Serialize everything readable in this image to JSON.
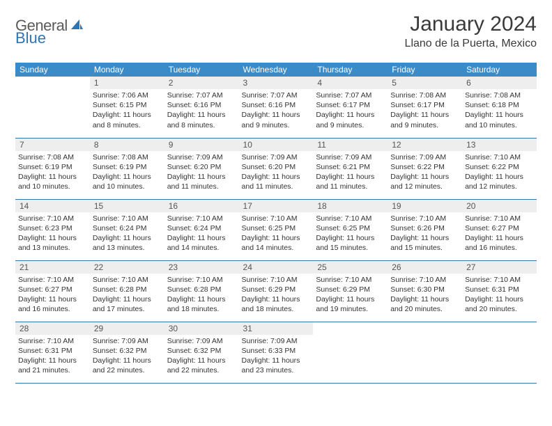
{
  "brand": {
    "part1": "General",
    "part2": "Blue"
  },
  "title": "January 2024",
  "location": "Llano de la Puerta, Mexico",
  "colors": {
    "header_bg": "#3b8bc9",
    "header_text": "#ffffff",
    "rule": "#2e75b6",
    "daynum_bg": "#eeeeee",
    "daynum_text": "#555555",
    "body_text": "#333333",
    "logo_gray": "#5a5a5a",
    "logo_blue": "#2e75b6"
  },
  "weekdays": [
    "Sunday",
    "Monday",
    "Tuesday",
    "Wednesday",
    "Thursday",
    "Friday",
    "Saturday"
  ],
  "weeks": [
    [
      {
        "n": "",
        "sunrise": "",
        "sunset": "",
        "daylight": ""
      },
      {
        "n": "1",
        "sunrise": "Sunrise: 7:06 AM",
        "sunset": "Sunset: 6:15 PM",
        "daylight": "Daylight: 11 hours and 8 minutes."
      },
      {
        "n": "2",
        "sunrise": "Sunrise: 7:07 AM",
        "sunset": "Sunset: 6:16 PM",
        "daylight": "Daylight: 11 hours and 8 minutes."
      },
      {
        "n": "3",
        "sunrise": "Sunrise: 7:07 AM",
        "sunset": "Sunset: 6:16 PM",
        "daylight": "Daylight: 11 hours and 9 minutes."
      },
      {
        "n": "4",
        "sunrise": "Sunrise: 7:07 AM",
        "sunset": "Sunset: 6:17 PM",
        "daylight": "Daylight: 11 hours and 9 minutes."
      },
      {
        "n": "5",
        "sunrise": "Sunrise: 7:08 AM",
        "sunset": "Sunset: 6:17 PM",
        "daylight": "Daylight: 11 hours and 9 minutes."
      },
      {
        "n": "6",
        "sunrise": "Sunrise: 7:08 AM",
        "sunset": "Sunset: 6:18 PM",
        "daylight": "Daylight: 11 hours and 10 minutes."
      }
    ],
    [
      {
        "n": "7",
        "sunrise": "Sunrise: 7:08 AM",
        "sunset": "Sunset: 6:19 PM",
        "daylight": "Daylight: 11 hours and 10 minutes."
      },
      {
        "n": "8",
        "sunrise": "Sunrise: 7:08 AM",
        "sunset": "Sunset: 6:19 PM",
        "daylight": "Daylight: 11 hours and 10 minutes."
      },
      {
        "n": "9",
        "sunrise": "Sunrise: 7:09 AM",
        "sunset": "Sunset: 6:20 PM",
        "daylight": "Daylight: 11 hours and 11 minutes."
      },
      {
        "n": "10",
        "sunrise": "Sunrise: 7:09 AM",
        "sunset": "Sunset: 6:20 PM",
        "daylight": "Daylight: 11 hours and 11 minutes."
      },
      {
        "n": "11",
        "sunrise": "Sunrise: 7:09 AM",
        "sunset": "Sunset: 6:21 PM",
        "daylight": "Daylight: 11 hours and 11 minutes."
      },
      {
        "n": "12",
        "sunrise": "Sunrise: 7:09 AM",
        "sunset": "Sunset: 6:22 PM",
        "daylight": "Daylight: 11 hours and 12 minutes."
      },
      {
        "n": "13",
        "sunrise": "Sunrise: 7:10 AM",
        "sunset": "Sunset: 6:22 PM",
        "daylight": "Daylight: 11 hours and 12 minutes."
      }
    ],
    [
      {
        "n": "14",
        "sunrise": "Sunrise: 7:10 AM",
        "sunset": "Sunset: 6:23 PM",
        "daylight": "Daylight: 11 hours and 13 minutes."
      },
      {
        "n": "15",
        "sunrise": "Sunrise: 7:10 AM",
        "sunset": "Sunset: 6:24 PM",
        "daylight": "Daylight: 11 hours and 13 minutes."
      },
      {
        "n": "16",
        "sunrise": "Sunrise: 7:10 AM",
        "sunset": "Sunset: 6:24 PM",
        "daylight": "Daylight: 11 hours and 14 minutes."
      },
      {
        "n": "17",
        "sunrise": "Sunrise: 7:10 AM",
        "sunset": "Sunset: 6:25 PM",
        "daylight": "Daylight: 11 hours and 14 minutes."
      },
      {
        "n": "18",
        "sunrise": "Sunrise: 7:10 AM",
        "sunset": "Sunset: 6:25 PM",
        "daylight": "Daylight: 11 hours and 15 minutes."
      },
      {
        "n": "19",
        "sunrise": "Sunrise: 7:10 AM",
        "sunset": "Sunset: 6:26 PM",
        "daylight": "Daylight: 11 hours and 15 minutes."
      },
      {
        "n": "20",
        "sunrise": "Sunrise: 7:10 AM",
        "sunset": "Sunset: 6:27 PM",
        "daylight": "Daylight: 11 hours and 16 minutes."
      }
    ],
    [
      {
        "n": "21",
        "sunrise": "Sunrise: 7:10 AM",
        "sunset": "Sunset: 6:27 PM",
        "daylight": "Daylight: 11 hours and 16 minutes."
      },
      {
        "n": "22",
        "sunrise": "Sunrise: 7:10 AM",
        "sunset": "Sunset: 6:28 PM",
        "daylight": "Daylight: 11 hours and 17 minutes."
      },
      {
        "n": "23",
        "sunrise": "Sunrise: 7:10 AM",
        "sunset": "Sunset: 6:28 PM",
        "daylight": "Daylight: 11 hours and 18 minutes."
      },
      {
        "n": "24",
        "sunrise": "Sunrise: 7:10 AM",
        "sunset": "Sunset: 6:29 PM",
        "daylight": "Daylight: 11 hours and 18 minutes."
      },
      {
        "n": "25",
        "sunrise": "Sunrise: 7:10 AM",
        "sunset": "Sunset: 6:29 PM",
        "daylight": "Daylight: 11 hours and 19 minutes."
      },
      {
        "n": "26",
        "sunrise": "Sunrise: 7:10 AM",
        "sunset": "Sunset: 6:30 PM",
        "daylight": "Daylight: 11 hours and 20 minutes."
      },
      {
        "n": "27",
        "sunrise": "Sunrise: 7:10 AM",
        "sunset": "Sunset: 6:31 PM",
        "daylight": "Daylight: 11 hours and 20 minutes."
      }
    ],
    [
      {
        "n": "28",
        "sunrise": "Sunrise: 7:10 AM",
        "sunset": "Sunset: 6:31 PM",
        "daylight": "Daylight: 11 hours and 21 minutes."
      },
      {
        "n": "29",
        "sunrise": "Sunrise: 7:09 AM",
        "sunset": "Sunset: 6:32 PM",
        "daylight": "Daylight: 11 hours and 22 minutes."
      },
      {
        "n": "30",
        "sunrise": "Sunrise: 7:09 AM",
        "sunset": "Sunset: 6:32 PM",
        "daylight": "Daylight: 11 hours and 22 minutes."
      },
      {
        "n": "31",
        "sunrise": "Sunrise: 7:09 AM",
        "sunset": "Sunset: 6:33 PM",
        "daylight": "Daylight: 11 hours and 23 minutes."
      },
      {
        "n": "",
        "sunrise": "",
        "sunset": "",
        "daylight": ""
      },
      {
        "n": "",
        "sunrise": "",
        "sunset": "",
        "daylight": ""
      },
      {
        "n": "",
        "sunrise": "",
        "sunset": "",
        "daylight": ""
      }
    ]
  ]
}
